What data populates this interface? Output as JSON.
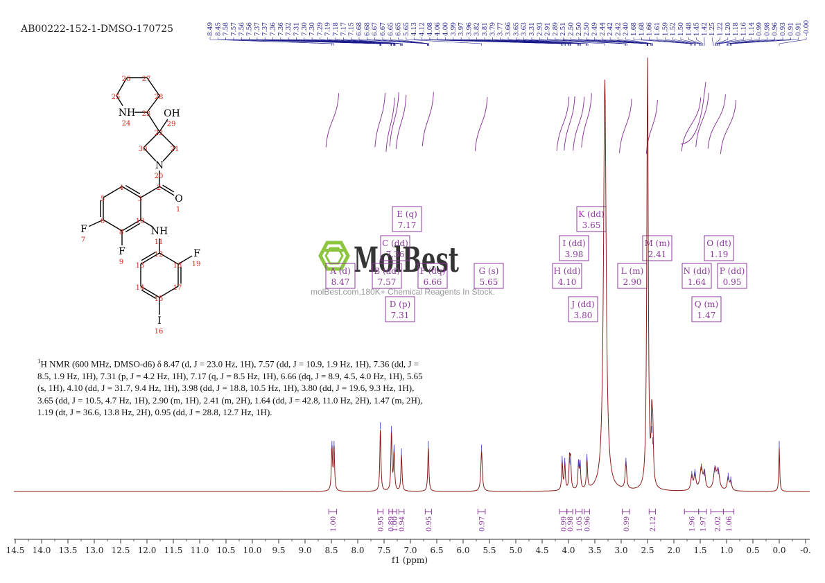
{
  "sample_id": "AB00222-152-1-DMSO-170725",
  "nmr_text": {
    "prefix": "1",
    "body": "H NMR (600 MHz, DMSO-d6) δ 8.47 (d, J = 23.0 Hz, 1H), 7.57 (dd, J = 10.9, 1.9 Hz, 1H), 7.36 (dd, J = 8.5, 1.9 Hz, 1H), 7.31 (p, J = 4.2 Hz, 1H), 7.17 (q, J = 8.5 Hz, 1H), 6.66 (dq, J = 8.9, 4.5, 4.0 Hz, 1H), 5.65 (s, 1H), 4.10 (dd, J = 31.7, 9.4 Hz, 1H), 3.98 (dd, J = 18.8, 10.5 Hz, 1H), 3.80 (dd, J = 19.6, 9.3 Hz, 1H), 3.65 (dd, J = 10.5, 4.7 Hz, 1H), 2.90 (m, 1H), 2.41 (m, 2H), 1.64 (dd, J = 42.8, 11.0 Hz, 2H), 1.47 (m, 2H), 1.19 (dt, J = 36.6, 13.8 Hz, 2H), 0.95 (dd, J = 28.8, 12.7 Hz, 1H)."
  },
  "watermark": {
    "name": "MolBest",
    "tagline": "molBest.com,180K+ Chemical Reagents In Stock."
  },
  "colors": {
    "spectrum": "#8b1a1a",
    "label": "#8e3a9e",
    "peaklist": "#1a1a8c",
    "atom_label": "#d9261c",
    "axis": "#333333"
  },
  "molecule": {
    "atoms": [
      {
        "id": "1",
        "sym": "O"
      },
      {
        "id": "2"
      },
      {
        "id": "3"
      },
      {
        "id": "4"
      },
      {
        "id": "5"
      },
      {
        "id": "6"
      },
      {
        "id": "7",
        "sym": "F"
      },
      {
        "id": "8"
      },
      {
        "id": "9",
        "sym": "F"
      },
      {
        "id": "10"
      },
      {
        "id": "11",
        "sym": "NH"
      },
      {
        "id": "12"
      },
      {
        "id": "13"
      },
      {
        "id": "14"
      },
      {
        "id": "15"
      },
      {
        "id": "16",
        "sym": "I"
      },
      {
        "id": "17"
      },
      {
        "id": "18"
      },
      {
        "id": "19",
        "sym": "F"
      },
      {
        "id": "20",
        "sym": "N"
      },
      {
        "id": "21"
      },
      {
        "id": "22"
      },
      {
        "id": "23"
      },
      {
        "id": "24",
        "sym": "NH"
      },
      {
        "id": "25"
      },
      {
        "id": "26"
      },
      {
        "id": "27"
      },
      {
        "id": "28"
      },
      {
        "id": "29",
        "sym": "OH"
      },
      {
        "id": "30"
      }
    ]
  },
  "chart_data": {
    "type": "line",
    "title": "",
    "xlabel": "f1 (ppm)",
    "ylabel": "",
    "xlim": [
      14.5,
      -0.5
    ],
    "x_reversed": true,
    "x_ticks": [
      "14.5",
      "14.0",
      "13.5",
      "13.0",
      "12.5",
      "12.0",
      "11.5",
      "11.0",
      "10.5",
      "10.0",
      "9.5",
      "9.0",
      "8.5",
      "8.0",
      "7.5",
      "7.0",
      "6.5",
      "6.0",
      "5.5",
      "5.0",
      "4.5",
      "4.0",
      "3.5",
      "3.0",
      "2.5",
      "2.0",
      "1.5",
      "1.0",
      "0.5",
      "0.0",
      "-0."
    ],
    "peak_list": [
      "8.49",
      "8.45",
      "7.58",
      "7.57",
      "7.56",
      "7.56",
      "7.37",
      "7.37",
      "7.36",
      "7.36",
      "7.32",
      "7.31",
      "7.30",
      "7.30",
      "7.29",
      "7.19",
      "7.18",
      "7.17",
      "7.15",
      "6.68",
      "6.68",
      "6.67",
      "6.67",
      "6.65",
      "6.65",
      "5.65",
      "4.13",
      "4.12",
      "4.08",
      "4.06",
      "4.00",
      "3.99",
      "3.97",
      "3.96",
      "3.82",
      "3.81",
      "3.79",
      "3.77",
      "3.66",
      "3.65",
      "3.63",
      "3.31",
      "2.93",
      "2.91",
      "2.89",
      "2.51",
      "2.50",
      "2.50",
      "2.50",
      "2.49",
      "2.44",
      "2.42",
      "2.42",
      "2.40",
      "1.68",
      "1.68",
      "1.66",
      "1.61",
      "1.59",
      "1.52",
      "1.50",
      "1.48",
      "1.45",
      "1.42",
      "1.25",
      "1.22",
      "1.20",
      "1.18",
      "1.16",
      "1.14",
      "0.99",
      "0.98",
      "0.96",
      "0.93",
      "0.91",
      "0.91",
      "-0.00"
    ],
    "peaks": [
      {
        "ppm": 8.49,
        "h": 0.24,
        "w": 0.012
      },
      {
        "ppm": 8.45,
        "h": 0.24,
        "w": 0.012
      },
      {
        "ppm": 7.57,
        "h": 0.34,
        "w": 0.012
      },
      {
        "ppm": 7.36,
        "h": 0.32,
        "w": 0.012
      },
      {
        "ppm": 7.31,
        "h": 0.22,
        "w": 0.012
      },
      {
        "ppm": 7.17,
        "h": 0.2,
        "w": 0.012
      },
      {
        "ppm": 6.66,
        "h": 0.24,
        "w": 0.012
      },
      {
        "ppm": 5.65,
        "h": 0.22,
        "w": 0.016
      },
      {
        "ppm": 4.12,
        "h": 0.16,
        "w": 0.012
      },
      {
        "ppm": 4.07,
        "h": 0.15,
        "w": 0.012
      },
      {
        "ppm": 3.98,
        "h": 0.16,
        "w": 0.012
      },
      {
        "ppm": 3.96,
        "h": 0.15,
        "w": 0.012
      },
      {
        "ppm": 3.81,
        "h": 0.14,
        "w": 0.012
      },
      {
        "ppm": 3.78,
        "h": 0.14,
        "w": 0.012
      },
      {
        "ppm": 3.65,
        "h": 0.17,
        "w": 0.012
      },
      {
        "ppm": 3.31,
        "h": 2.2,
        "w": 0.03
      },
      {
        "ppm": 2.91,
        "h": 0.15,
        "w": 0.016
      },
      {
        "ppm": 2.5,
        "h": 2.3,
        "w": 0.016
      },
      {
        "ppm": 2.42,
        "h": 0.32,
        "w": 0.014
      },
      {
        "ppm": 2.4,
        "h": 0.26,
        "w": 0.014
      },
      {
        "ppm": 1.66,
        "h": 0.08,
        "w": 0.02
      },
      {
        "ppm": 1.6,
        "h": 0.09,
        "w": 0.02
      },
      {
        "ppm": 1.48,
        "h": 0.12,
        "w": 0.03
      },
      {
        "ppm": 1.42,
        "h": 0.09,
        "w": 0.02
      },
      {
        "ppm": 1.22,
        "h": 0.11,
        "w": 0.03
      },
      {
        "ppm": 1.16,
        "h": 0.1,
        "w": 0.03
      },
      {
        "ppm": 0.97,
        "h": 0.07,
        "w": 0.02
      },
      {
        "ppm": 0.92,
        "h": 0.05,
        "w": 0.02
      },
      {
        "ppm": 0.0,
        "h": 0.24,
        "w": 0.01
      }
    ],
    "integrals": [
      {
        "from": 8.55,
        "to": 8.4,
        "label": "1.00"
      },
      {
        "from": 7.62,
        "to": 7.52,
        "label": "0.95"
      },
      {
        "from": 7.41,
        "to": 7.34,
        "label": "0.89"
      },
      {
        "from": 7.34,
        "to": 7.26,
        "label": "1.00"
      },
      {
        "from": 7.22,
        "to": 7.12,
        "label": "0.94"
      },
      {
        "from": 6.72,
        "to": 6.6,
        "label": "0.95"
      },
      {
        "from": 5.72,
        "to": 5.58,
        "label": "0.97"
      },
      {
        "from": 4.17,
        "to": 4.03,
        "label": "0.99"
      },
      {
        "from": 4.03,
        "to": 3.92,
        "label": "0.98"
      },
      {
        "from": 3.86,
        "to": 3.74,
        "label": "1.05"
      },
      {
        "from": 3.7,
        "to": 3.6,
        "label": "0.96"
      },
      {
        "from": 2.98,
        "to": 2.84,
        "label": "0.99"
      },
      {
        "from": 2.47,
        "to": 2.35,
        "label": "2.12"
      },
      {
        "from": 1.8,
        "to": 1.53,
        "label": "1.96"
      },
      {
        "from": 1.53,
        "to": 1.38,
        "label": "1.97"
      },
      {
        "from": 1.3,
        "to": 1.06,
        "label": "2.02"
      },
      {
        "from": 1.06,
        "to": 0.86,
        "label": "1.06"
      }
    ],
    "annotations": [
      {
        "letter": "A",
        "mult": "d",
        "ppm": "8.47"
      },
      {
        "letter": "B",
        "mult": "dd",
        "ppm": "7.57"
      },
      {
        "letter": "C",
        "mult": "dd",
        "ppm": "7.36"
      },
      {
        "letter": "D",
        "mult": "p",
        "ppm": "7.31"
      },
      {
        "letter": "E",
        "mult": "q",
        "ppm": "7.17"
      },
      {
        "letter": "F",
        "mult": "dq",
        "ppm": "6.66"
      },
      {
        "letter": "G",
        "mult": "s",
        "ppm": "5.65"
      },
      {
        "letter": "H",
        "mult": "dd",
        "ppm": "4.10"
      },
      {
        "letter": "I",
        "mult": "dd",
        "ppm": "3.98"
      },
      {
        "letter": "J",
        "mult": "dd",
        "ppm": "3.80"
      },
      {
        "letter": "K",
        "mult": "dd",
        "ppm": "3.65"
      },
      {
        "letter": "L",
        "mult": "m",
        "ppm": "2.90"
      },
      {
        "letter": "M",
        "mult": "m",
        "ppm": "2.41"
      },
      {
        "letter": "N",
        "mult": "dd",
        "ppm": "1.64"
      },
      {
        "letter": "O",
        "mult": "dt",
        "ppm": "1.19"
      },
      {
        "letter": "P",
        "mult": "dd",
        "ppm": "0.95"
      },
      {
        "letter": "Q",
        "mult": "m",
        "ppm": "1.47"
      }
    ]
  }
}
